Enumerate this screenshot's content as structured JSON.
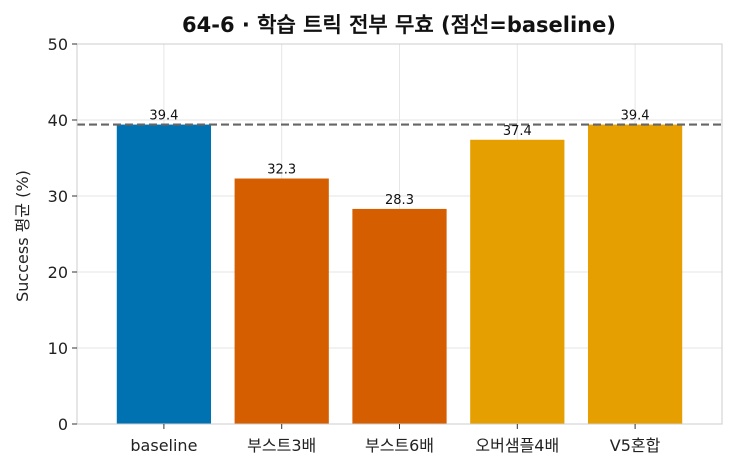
{
  "chart_data": {
    "type": "bar",
    "title": "64-6 · 학습 트릭 전부 무효 (점선=baseline)",
    "xlabel": "",
    "ylabel": "Success 평균 (%)",
    "categories": [
      "baseline",
      "부스트3배",
      "부스트6배",
      "오버샘플4배",
      "V5혼합"
    ],
    "values": [
      39.4,
      32.3,
      28.3,
      37.4,
      39.4
    ],
    "value_labels": [
      "39.4",
      "32.3",
      "28.3",
      "37.4",
      "39.4"
    ],
    "colors": [
      "#0072B2",
      "#D55E00",
      "#D55E00",
      "#E69F00",
      "#E69F00"
    ],
    "ylim": [
      0,
      50
    ],
    "yticks": [
      0,
      10,
      20,
      30,
      40,
      50
    ],
    "ytick_labels": [
      "0",
      "10",
      "20",
      "30",
      "40",
      "50"
    ],
    "reference_line": {
      "value": 39.4,
      "style": "dashed",
      "color": "#666666"
    },
    "grid": true,
    "legend": "none"
  }
}
